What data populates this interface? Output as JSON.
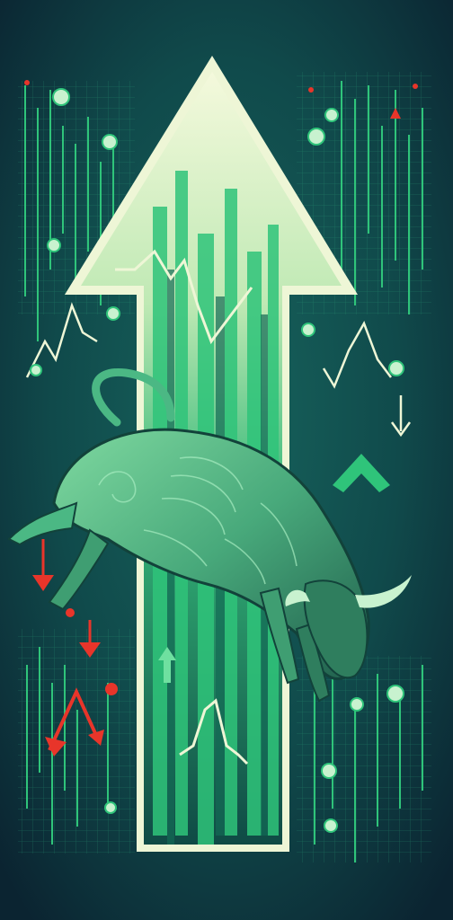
{
  "colors": {
    "background_dark": "#0d2a36",
    "background_teal": "#11504f",
    "grid_line": "#1f8a6a",
    "arrow_cream": "#eef6d6",
    "arrow_green": "#2fc47a",
    "bull_green": "#4bb884",
    "bull_dark": "#1d5d4a",
    "accent_red": "#e8352a",
    "accent_mint": "#c8f2cf"
  },
  "icons": {
    "main_arrow": "big-up-arrow-icon",
    "bull": "charging-bull-icon",
    "down_arrows": "red-down-arrow-icon",
    "chevron": "green-chevron-up-icon",
    "coins": "coin-icon"
  }
}
